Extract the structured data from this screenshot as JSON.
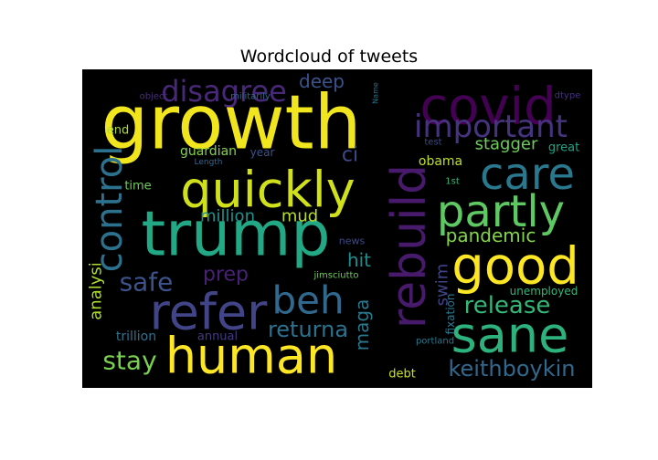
{
  "chart_data": {
    "type": "wordcloud",
    "title": "Wordcloud of tweets",
    "background": "#000000",
    "colormap": "viridis",
    "words": [
      {
        "text": "growth",
        "weight": 1.0,
        "color": "#f1e51d"
      },
      {
        "text": "trump",
        "weight": 1.0,
        "color": "#22a884"
      },
      {
        "text": "quickly",
        "weight": 0.82,
        "color": "#d0e11c"
      },
      {
        "text": "human",
        "weight": 0.82,
        "color": "#fde725"
      },
      {
        "text": "covid",
        "weight": 0.8,
        "color": "#440154"
      },
      {
        "text": "rebuild",
        "weight": 0.8,
        "color": "#481a6c"
      },
      {
        "text": "good",
        "weight": 0.8,
        "color": "#fde725"
      },
      {
        "text": "refer",
        "weight": 0.78,
        "color": "#414487"
      },
      {
        "text": "sane",
        "weight": 0.76,
        "color": "#2db27d"
      },
      {
        "text": "care",
        "weight": 0.7,
        "color": "#2a788e"
      },
      {
        "text": "partly",
        "weight": 0.7,
        "color": "#5ec962"
      },
      {
        "text": "control",
        "weight": 0.66,
        "color": "#2c728e"
      },
      {
        "text": "beh",
        "weight": 0.58,
        "color": "#31688e"
      },
      {
        "text": "important",
        "weight": 0.5,
        "color": "#46337e"
      },
      {
        "text": "disagree",
        "weight": 0.46,
        "color": "#482878"
      },
      {
        "text": "safe",
        "weight": 0.42,
        "color": "#3b528b"
      },
      {
        "text": "stay",
        "weight": 0.42,
        "color": "#7ad151"
      },
      {
        "text": "release",
        "weight": 0.38,
        "color": "#35b779"
      },
      {
        "text": "keithboykin",
        "weight": 0.38,
        "color": "#31688e"
      },
      {
        "text": "returna",
        "weight": 0.34,
        "color": "#2c728e"
      },
      {
        "text": "prep",
        "weight": 0.34,
        "color": "#482173"
      },
      {
        "text": "deep",
        "weight": 0.3,
        "color": "#3b528b"
      },
      {
        "text": "ci",
        "weight": 0.3,
        "color": "#3e4989"
      },
      {
        "text": "pandemic",
        "weight": 0.3,
        "color": "#84d44b"
      },
      {
        "text": "stagger",
        "weight": 0.3,
        "color": "#6ccd5a"
      },
      {
        "text": "hit",
        "weight": 0.3,
        "color": "#228c8d"
      },
      {
        "text": "mud",
        "weight": 0.28,
        "color": "#b5de2b"
      },
      {
        "text": "maga",
        "weight": 0.28,
        "color": "#2a788e"
      },
      {
        "text": "swim",
        "weight": 0.26,
        "color": "#414487"
      },
      {
        "text": "million",
        "weight": 0.24,
        "color": "#21918c"
      },
      {
        "text": "analysi",
        "weight": 0.22,
        "color": "#addc30"
      },
      {
        "text": "guardian",
        "weight": 0.16,
        "color": "#84d44b"
      },
      {
        "text": "great",
        "weight": 0.16,
        "color": "#20a386"
      },
      {
        "text": "obama",
        "weight": 0.16,
        "color": "#bddf26"
      },
      {
        "text": "trillion",
        "weight": 0.16,
        "color": "#2c728e"
      },
      {
        "text": "annual",
        "weight": 0.14,
        "color": "#443983"
      },
      {
        "text": "unemployed",
        "weight": 0.14,
        "color": "#35b779"
      },
      {
        "text": "time",
        "weight": 0.14,
        "color": "#6ccd5a"
      },
      {
        "text": "end",
        "weight": 0.14,
        "color": "#addc30"
      },
      {
        "text": "year",
        "weight": 0.14,
        "color": "#3b528b"
      },
      {
        "text": "fixation",
        "weight": 0.13,
        "color": "#2a788e"
      },
      {
        "text": "debt",
        "weight": 0.13,
        "color": "#c8e020"
      },
      {
        "text": "news",
        "weight": 0.12,
        "color": "#3e4989"
      },
      {
        "text": "portland",
        "weight": 0.11,
        "color": "#2a788e"
      },
      {
        "text": "militarily",
        "weight": 0.1,
        "color": "#32648e"
      },
      {
        "text": "object",
        "weight": 0.1,
        "color": "#472d7b"
      },
      {
        "text": "Length",
        "weight": 0.1,
        "color": "#31688e"
      },
      {
        "text": "jimsciutto",
        "weight": 0.1,
        "color": "#6ece58"
      },
      {
        "text": "test",
        "weight": 0.1,
        "color": "#3e4989"
      },
      {
        "text": "dtype",
        "weight": 0.1,
        "color": "#46327e"
      },
      {
        "text": "Name",
        "weight": 0.08,
        "color": "#2c728e"
      },
      {
        "text": "1st",
        "weight": 0.08,
        "color": "#35b779"
      }
    ]
  }
}
